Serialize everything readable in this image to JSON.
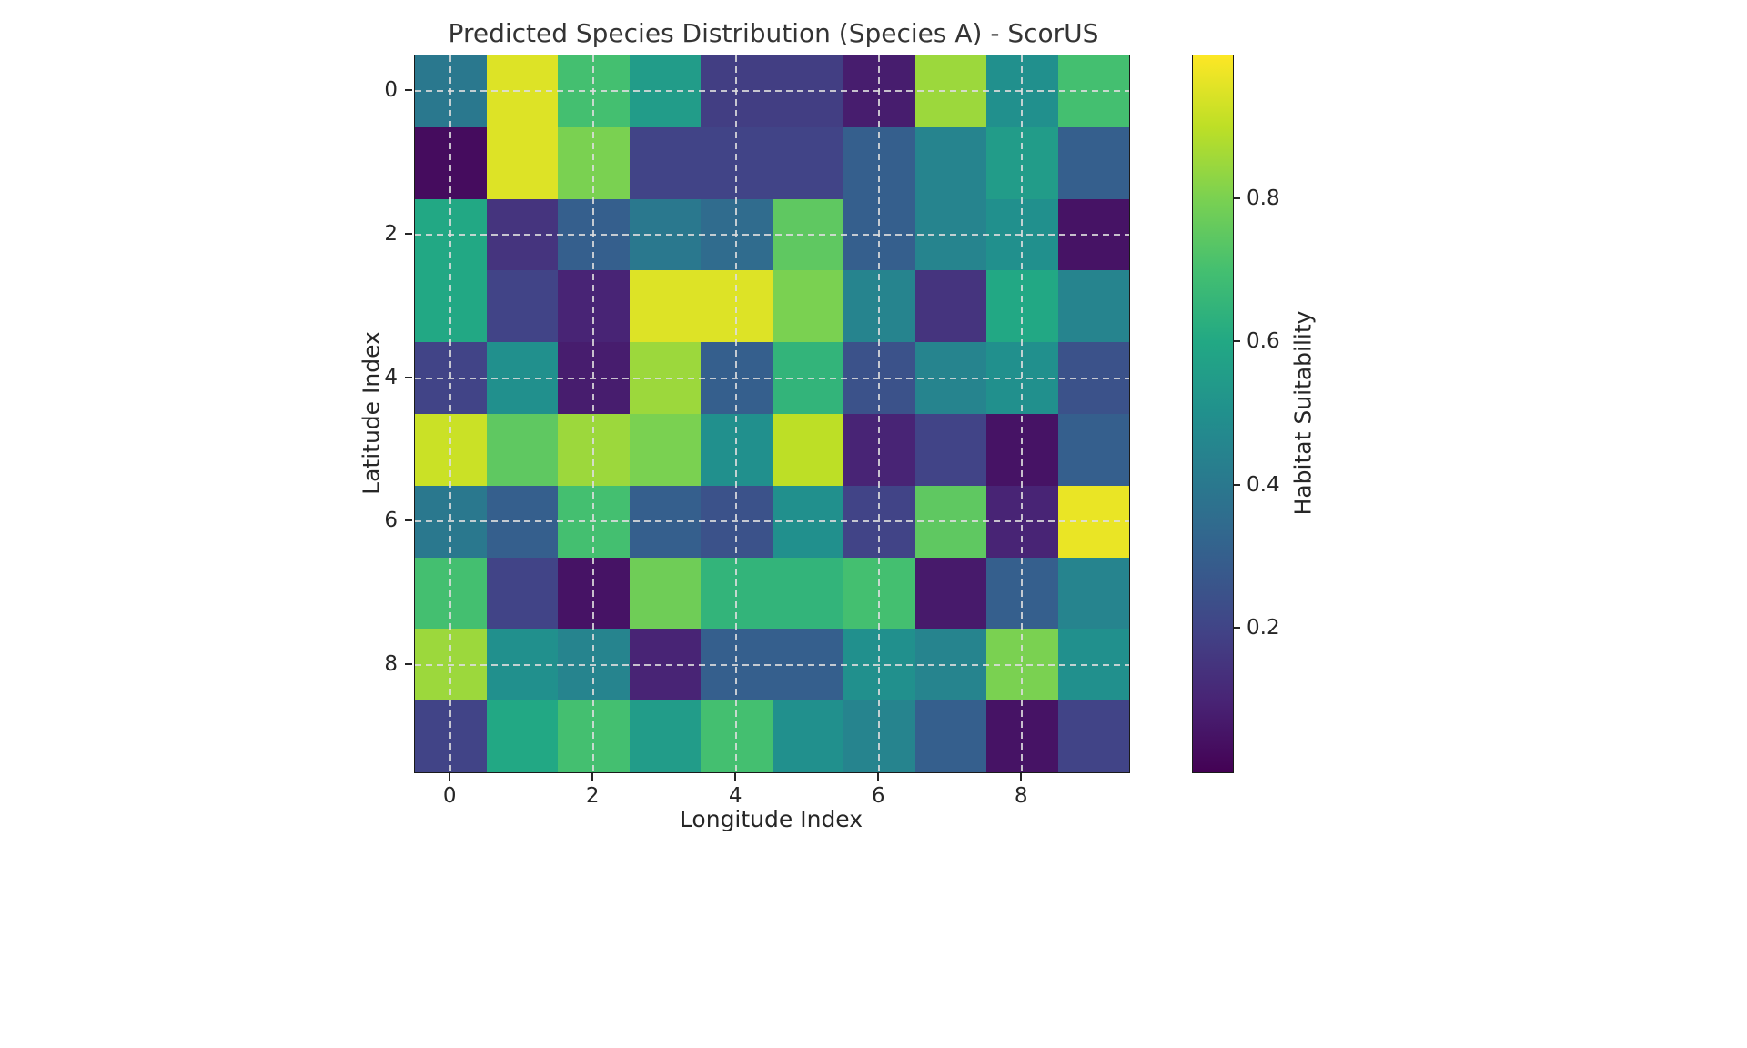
{
  "chart_data": {
    "type": "heatmap",
    "title": "Predicted Species Distribution (Species A) - ScorUS",
    "xlabel": "Longitude Index",
    "ylabel": "Latitude Index",
    "colormap": "viridis",
    "vmin": 0.0,
    "vmax": 1.0,
    "grid": true,
    "x_ticks": [
      0,
      2,
      4,
      6,
      8
    ],
    "y_ticks": [
      0,
      2,
      4,
      6,
      8
    ],
    "colorbar": {
      "label": "Habitat Suitability",
      "ticks": [
        0.8,
        0.6,
        0.4,
        0.2
      ],
      "position": "right"
    },
    "x_range": [
      0,
      9
    ],
    "y_range": [
      0,
      9
    ],
    "values": [
      [
        0.4,
        0.95,
        0.7,
        0.55,
        0.18,
        0.18,
        0.08,
        0.85,
        0.5,
        0.7
      ],
      [
        0.03,
        0.95,
        0.8,
        0.2,
        0.2,
        0.2,
        0.3,
        0.45,
        0.55,
        0.3
      ],
      [
        0.6,
        0.15,
        0.3,
        0.4,
        0.35,
        0.75,
        0.3,
        0.45,
        0.5,
        0.05
      ],
      [
        0.6,
        0.2,
        0.1,
        0.95,
        0.95,
        0.8,
        0.45,
        0.15,
        0.6,
        0.45
      ],
      [
        0.2,
        0.5,
        0.08,
        0.85,
        0.3,
        0.65,
        0.25,
        0.45,
        0.5,
        0.25
      ],
      [
        0.92,
        0.75,
        0.85,
        0.8,
        0.5,
        0.9,
        0.1,
        0.2,
        0.05,
        0.3
      ],
      [
        0.4,
        0.3,
        0.7,
        0.3,
        0.25,
        0.5,
        0.2,
        0.75,
        0.1,
        0.97
      ],
      [
        0.7,
        0.2,
        0.05,
        0.78,
        0.65,
        0.65,
        0.7,
        0.07,
        0.3,
        0.45
      ],
      [
        0.85,
        0.5,
        0.45,
        0.1,
        0.3,
        0.3,
        0.5,
        0.45,
        0.8,
        0.5
      ],
      [
        0.2,
        0.6,
        0.7,
        0.55,
        0.7,
        0.5,
        0.45,
        0.3,
        0.05,
        0.2
      ]
    ]
  }
}
